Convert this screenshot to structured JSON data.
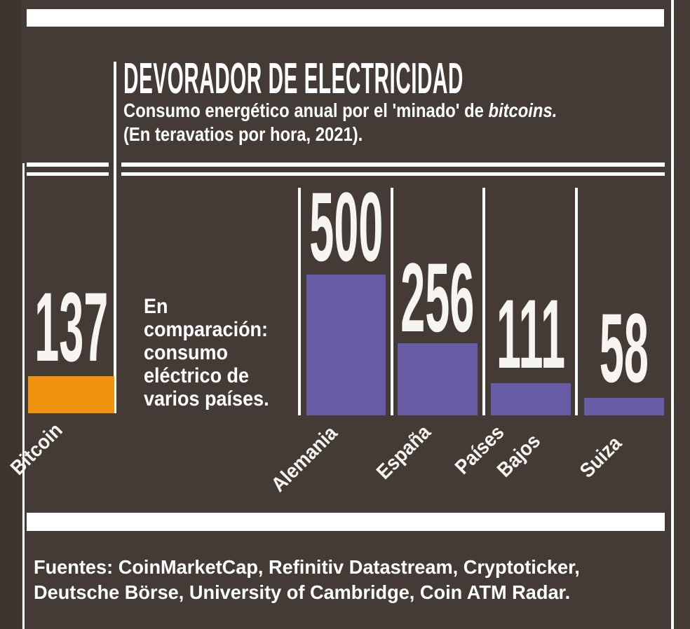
{
  "header": {
    "title": "DEVORADOR DE ELECTRICIDAD",
    "subtitle_before_italic": "Consumo energético anual por el 'minado' de ",
    "subtitle_italic": "bitcoins.",
    "subtitle_line2": "(En teravatios por hora, 2021)."
  },
  "comparison_note": "En\ncomparación:\nconsumo\neléctrico de\nvarios países.",
  "bars": {
    "bitcoin": {
      "value": "137",
      "label": "Bitcoin"
    },
    "alemania": {
      "value": "500",
      "label": "Alemania"
    },
    "espana": {
      "value": "256",
      "label": "España"
    },
    "paises_bajos": {
      "value": "111",
      "label_line1": "Países",
      "label_line2": "Bajos"
    },
    "suiza": {
      "value": "58",
      "label": "Suiza"
    }
  },
  "footer": {
    "sources_line1": "Fuentes: CoinMarketCap, Refinitiv Datastream, Cryptoticker,",
    "sources_line2": "Deutsche Börse, University of Cambridge, Coin ATM Radar."
  },
  "colors": {
    "background": "#443B36",
    "rule_white": "#FFFFFF",
    "bitcoin_orange": "#F0920E",
    "country_purple": "#675CA5"
  },
  "chart_data": {
    "type": "bar",
    "title": "DEVORADOR DE ELECTRICIDAD",
    "subtitle": "Consumo energético anual por el 'minado' de bitcoins. (En teravatios por hora, 2021).",
    "categories": [
      "Bitcoin",
      "Alemania",
      "España",
      "Países Bajos",
      "Suiza"
    ],
    "values": [
      137,
      500,
      256,
      111,
      58
    ],
    "bar_colors": [
      "#F0920E",
      "#675CA5",
      "#675CA5",
      "#675CA5",
      "#675CA5"
    ],
    "ylabel": "Teravatios por hora (2021)",
    "ylim": [
      0,
      500
    ],
    "grid": false,
    "legend": "none",
    "annotation": "En comparación: consumo eléctrico de varios países.",
    "data_labels_position": "above-bar",
    "sources": "Fuentes: CoinMarketCap, Refinitiv Datastream, Cryptoticker, Deutsche Börse, University of Cambridge, Coin ATM Radar."
  }
}
